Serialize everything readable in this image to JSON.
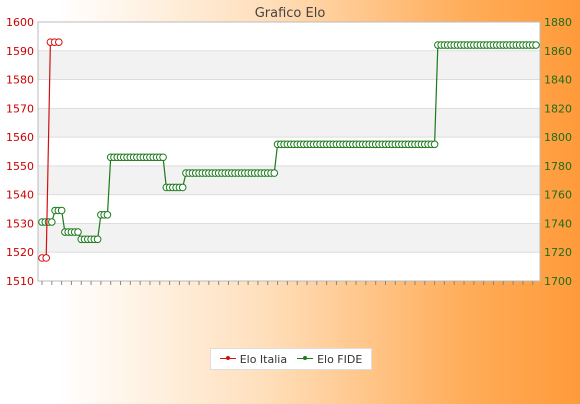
{
  "chart_data": {
    "type": "line",
    "title": "Grafico Elo",
    "grid": true,
    "legend_position": "bottom",
    "colors": {
      "italia": "#d11111",
      "fide": "#1b7a1b",
      "left_axis": "#cc0000",
      "right_axis": "#1b6f1b"
    },
    "y_left": {
      "ylim": [
        1510,
        1600
      ],
      "ticks": [
        "1510",
        "1520",
        "1530",
        "1540",
        "1550",
        "1560",
        "1570",
        "1580",
        "1590",
        "1600"
      ]
    },
    "y_right": {
      "ylim": [
        1700,
        1880
      ],
      "ticks": [
        "1700",
        "1720",
        "1740",
        "1760",
        "1780",
        "1800",
        "1820",
        "1840",
        "1860",
        "1880"
      ]
    },
    "series": [
      {
        "name": "Elo Italia",
        "axis": "left",
        "values": [
          1518,
          1518,
          1593,
          1593,
          1593
        ]
      },
      {
        "name": "Elo FIDE",
        "axis": "right",
        "values": [
          1741,
          1741,
          1741,
          1741,
          1749,
          1749,
          1749,
          1734,
          1734,
          1734,
          1734,
          1734,
          1729,
          1729,
          1729,
          1729,
          1729,
          1729,
          1746,
          1746,
          1746,
          1786,
          1786,
          1786,
          1786,
          1786,
          1786,
          1786,
          1786,
          1786,
          1786,
          1786,
          1786,
          1786,
          1786,
          1786,
          1786,
          1786,
          1765,
          1765,
          1765,
          1765,
          1765,
          1765,
          1775,
          1775,
          1775,
          1775,
          1775,
          1775,
          1775,
          1775,
          1775,
          1775,
          1775,
          1775,
          1775,
          1775,
          1775,
          1775,
          1775,
          1775,
          1775,
          1775,
          1775,
          1775,
          1775,
          1775,
          1775,
          1775,
          1775,
          1775,
          1795,
          1795,
          1795,
          1795,
          1795,
          1795,
          1795,
          1795,
          1795,
          1795,
          1795,
          1795,
          1795,
          1795,
          1795,
          1795,
          1795,
          1795,
          1795,
          1795,
          1795,
          1795,
          1795,
          1795,
          1795,
          1795,
          1795,
          1795,
          1795,
          1795,
          1795,
          1795,
          1795,
          1795,
          1795,
          1795,
          1795,
          1795,
          1795,
          1795,
          1795,
          1795,
          1795,
          1795,
          1795,
          1795,
          1795,
          1795,
          1795,
          1864,
          1864,
          1864,
          1864,
          1864,
          1864,
          1864,
          1864,
          1864,
          1864,
          1864,
          1864,
          1864,
          1864,
          1864,
          1864,
          1864,
          1864,
          1864,
          1864,
          1864,
          1864,
          1864,
          1864,
          1864,
          1864,
          1864,
          1864,
          1864,
          1864,
          1864
        ]
      }
    ]
  }
}
